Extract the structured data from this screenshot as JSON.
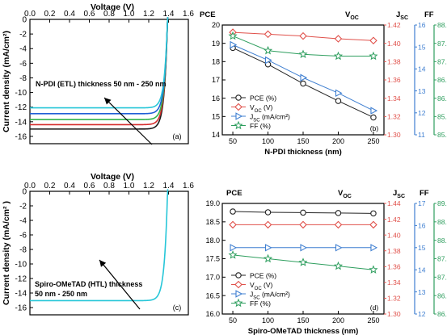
{
  "colors": {
    "pce": "#222222",
    "voc": "#e0504a",
    "jsc": "#3f7fd1",
    "ff": "#2e9e5e",
    "jv": [
      "#1a1a1a",
      "#d62b2b",
      "#2fb34a",
      "#1f5fd6",
      "#26c6d8"
    ]
  },
  "chart_data": [
    {
      "panel": "(a)",
      "type": "line",
      "xlabel": "Voltage (V)",
      "ylabel": "Current density (mA/cm²)",
      "xlim": [
        0,
        1.6
      ],
      "ylim": [
        -17,
        0
      ],
      "xticks": [
        "0.0",
        "0.2",
        "0.4",
        "0.6",
        "0.8",
        "1.0",
        "1.2",
        "1.4",
        "1.6"
      ],
      "yticks": [
        "0",
        "-2",
        "-4",
        "-6",
        "-8",
        "-10",
        "-12",
        "-14",
        "-16"
      ],
      "annotation": "N-PDI (ETL) thickness 50 nm - 250 nm",
      "voc": 1.39,
      "series": [
        {
          "jsc": -15.0
        },
        {
          "jsc": -14.4
        },
        {
          "jsc": -13.7
        },
        {
          "jsc": -12.9
        },
        {
          "jsc": -12.1
        }
      ]
    },
    {
      "panel": "(b)",
      "type": "line",
      "xlabel": "N-PDI  thickness (nm)",
      "x": [
        50,
        100,
        150,
        200,
        250
      ],
      "axis_titles": [
        "PCE",
        "VOC",
        "JSC",
        "FF"
      ],
      "pce_ticks": [
        "14",
        "15",
        "16",
        "17",
        "18",
        "19",
        "20"
      ],
      "voc_ticks": [
        "1.30",
        "1.32",
        "1.34",
        "1.36",
        "1.38",
        "1.40",
        "1.42"
      ],
      "jsc_ticks": [
        "11",
        "12",
        "13",
        "14",
        "15",
        "16"
      ],
      "ff_ticks": [
        "85.0",
        "85.5",
        "86.0",
        "86.5",
        "87.0",
        "87.5",
        "88.0"
      ],
      "pce_range": [
        14,
        20
      ],
      "voc_range": [
        1.3,
        1.42
      ],
      "jsc_range": [
        11,
        16
      ],
      "ff_range": [
        85.0,
        88.0
      ],
      "legend": [
        "PCE (%)",
        "VOC (V)",
        "JSC (mA/cm²)",
        "FF (%)"
      ],
      "series": {
        "pce": [
          18.75,
          17.85,
          16.8,
          15.85,
          14.95
        ],
        "voc": [
          1.412,
          1.41,
          1.408,
          1.405,
          1.403
        ],
        "jsc": [
          15.1,
          14.4,
          13.6,
          12.9,
          12.1
        ],
        "ff": [
          87.7,
          87.3,
          87.2,
          87.15,
          87.15
        ]
      }
    },
    {
      "panel": "(c)",
      "type": "line",
      "xlabel": "Voltage (V)",
      "ylabel": "Current density (mA/cm² )",
      "xlim": [
        0,
        1.6
      ],
      "ylim": [
        -17,
        0
      ],
      "xticks": [
        "0.0",
        "0.2",
        "0.4",
        "0.6",
        "0.8",
        "1.0",
        "1.2",
        "1.4",
        "1.6"
      ],
      "yticks": [
        "0",
        "-2",
        "-4",
        "-6",
        "-8",
        "-10",
        "-12",
        "-14",
        "-16"
      ],
      "annotation": [
        "Spiro-OMeTAD (HTL) thickness",
        "50 nm - 250 nm"
      ],
      "voc": 1.39,
      "series": [
        {
          "jsc": -15.05
        }
      ]
    },
    {
      "panel": "(d)",
      "type": "line",
      "xlabel": "Spiro-OMeTAD thickness (nm)",
      "x": [
        50,
        100,
        150,
        200,
        250
      ],
      "axis_titles": [
        "PCE",
        "VOC",
        "JSC",
        "FF"
      ],
      "pce_ticks": [
        "16.0",
        "16.5",
        "17.0",
        "17.5",
        "18.0",
        "18.5",
        "19.0"
      ],
      "voc_ticks": [
        "1.30",
        "1.32",
        "1.34",
        "1.36",
        "1.38",
        "1.40",
        "1.42",
        "1.44"
      ],
      "jsc_ticks": [
        "12",
        "13",
        "14",
        "15",
        "16",
        "17"
      ],
      "ff_ticks": [
        "86.0",
        "86.5",
        "87.0",
        "87.5",
        "88.0",
        "88.5",
        "89.0"
      ],
      "pce_range": [
        16.0,
        19.0
      ],
      "voc_range": [
        1.3,
        1.44
      ],
      "jsc_range": [
        12,
        17
      ],
      "ff_range": [
        86.0,
        89.0
      ],
      "legend": [
        "PCE (%)",
        "VOC (V)",
        "JSC (mA/cm²)",
        "FF (%)"
      ],
      "series": {
        "pce": [
          18.78,
          18.76,
          18.75,
          18.74,
          18.73
        ],
        "voc": [
          1.413,
          1.413,
          1.413,
          1.413,
          1.413
        ],
        "jsc": [
          15.0,
          15.0,
          15.0,
          15.0,
          15.0
        ],
        "ff": [
          87.6,
          87.5,
          87.4,
          87.3,
          87.2
        ]
      }
    }
  ]
}
